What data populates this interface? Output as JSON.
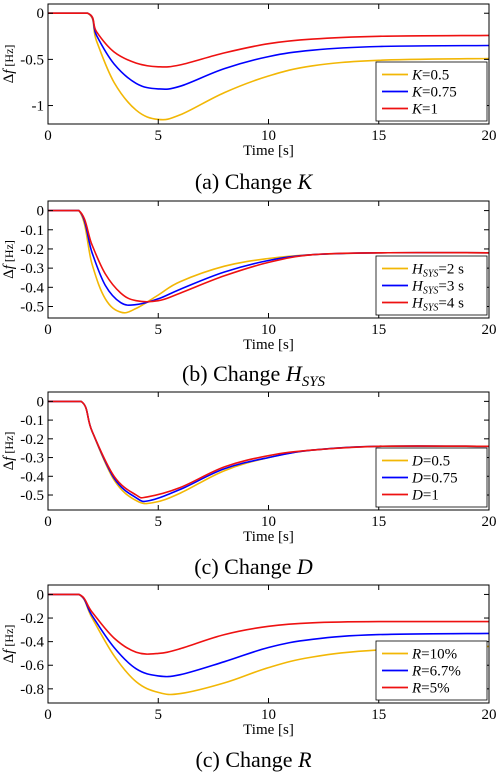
{
  "chart_data": [
    {
      "type": "line",
      "caption": {
        "prefix": "(a) Change ",
        "symbol": "K",
        "sub": ""
      },
      "xlabel": "Time [s]",
      "ylabel": {
        "delta": "Δ",
        "var": "f",
        "unit": " [Hz]"
      },
      "xlim": [
        0,
        20
      ],
      "ylim": [
        -1.2,
        0.1
      ],
      "xticks": [
        0,
        5,
        10,
        15,
        20
      ],
      "xtick_labels": [
        "0",
        "5",
        "10",
        "15",
        "20"
      ],
      "yticks": [
        0,
        -0.5,
        -1
      ],
      "ytick_labels": [
        "0",
        "-0.5",
        "-1"
      ],
      "legend_position": "bottom-right",
      "series": [
        {
          "name": "0.5",
          "symbol": "K",
          "sub": "",
          "color": "#f2b705",
          "x": [
            0,
            1.8,
            2.2,
            3,
            4,
            5,
            6,
            8,
            10,
            12,
            15,
            20
          ],
          "y": [
            0,
            0,
            -0.3,
            -0.75,
            -1.05,
            -1.15,
            -1.1,
            -0.86,
            -0.68,
            -0.57,
            -0.51,
            -0.49
          ]
        },
        {
          "name": "0.75",
          "symbol": "K",
          "sub": "",
          "color": "#0000ff",
          "x": [
            0,
            1.8,
            2.2,
            3,
            4,
            5,
            6,
            8,
            10,
            12,
            15,
            20
          ],
          "y": [
            0,
            0,
            -0.24,
            -0.55,
            -0.76,
            -0.82,
            -0.79,
            -0.6,
            -0.47,
            -0.4,
            -0.36,
            -0.35
          ]
        },
        {
          "name": "1",
          "symbol": "K",
          "sub": "",
          "color": "#ee1111",
          "x": [
            0,
            1.8,
            2.2,
            3,
            4,
            5,
            6,
            8,
            10,
            12,
            15,
            20
          ],
          "y": [
            0,
            0,
            -0.2,
            -0.42,
            -0.54,
            -0.58,
            -0.56,
            -0.43,
            -0.33,
            -0.28,
            -0.25,
            -0.24
          ]
        }
      ]
    },
    {
      "type": "line",
      "caption": {
        "prefix": "(b) Change ",
        "symbol": "H",
        "sub": "SYS"
      },
      "xlabel": "Time [s]",
      "ylabel": {
        "delta": "Δ",
        "var": "f",
        "unit": " [Hz]"
      },
      "xlim": [
        0,
        20
      ],
      "ylim": [
        -0.56,
        0.05
      ],
      "xticks": [
        0,
        5,
        10,
        15,
        20
      ],
      "xtick_labels": [
        "0",
        "5",
        "10",
        "15",
        "20"
      ],
      "yticks": [
        0,
        -0.1,
        -0.2,
        -0.3,
        -0.4,
        -0.5
      ],
      "ytick_labels": [
        "0",
        "-0.1",
        "-0.2",
        "-0.3",
        "-0.4",
        "-0.5"
      ],
      "legend_position": "bottom-right",
      "series": [
        {
          "name": "2 s",
          "symbol": "H",
          "sub": "SYS",
          "color": "#f2b705",
          "x": [
            0,
            1.4,
            2,
            2.6,
            3.3,
            4,
            5,
            6,
            8,
            10,
            12,
            15,
            20
          ],
          "y": [
            0,
            0,
            -0.28,
            -0.46,
            -0.53,
            -0.51,
            -0.44,
            -0.37,
            -0.29,
            -0.25,
            -0.23,
            -0.22,
            -0.22
          ]
        },
        {
          "name": "3 s",
          "symbol": "H",
          "sub": "SYS",
          "color": "#0000ff",
          "x": [
            0,
            1.4,
            2,
            2.6,
            3.3,
            4,
            5,
            6,
            8,
            10,
            12,
            15,
            20
          ],
          "y": [
            0,
            0,
            -0.22,
            -0.39,
            -0.48,
            -0.49,
            -0.46,
            -0.41,
            -0.32,
            -0.26,
            -0.23,
            -0.22,
            -0.22
          ]
        },
        {
          "name": "4 s",
          "symbol": "H",
          "sub": "SYS",
          "color": "#ee1111",
          "x": [
            0,
            1.4,
            2,
            2.6,
            3.3,
            4,
            5,
            6,
            8,
            10,
            12,
            15,
            20
          ],
          "y": [
            0,
            0,
            -0.18,
            -0.33,
            -0.43,
            -0.47,
            -0.47,
            -0.43,
            -0.34,
            -0.27,
            -0.23,
            -0.22,
            -0.22
          ]
        }
      ]
    },
    {
      "type": "line",
      "caption": {
        "prefix": "(c) Change ",
        "symbol": "D",
        "sub": ""
      },
      "xlabel": "Time [s]",
      "ylabel": {
        "delta": "Δ",
        "var": "f",
        "unit": " [Hz]"
      },
      "xlim": [
        0,
        20
      ],
      "ylim": [
        -0.58,
        0.05
      ],
      "xticks": [
        0,
        5,
        10,
        15,
        20
      ],
      "xtick_labels": [
        "0",
        "5",
        "10",
        "15",
        "20"
      ],
      "yticks": [
        0,
        -0.1,
        -0.2,
        -0.3,
        -0.4,
        -0.5
      ],
      "ytick_labels": [
        "0",
        "-0.1",
        "-0.2",
        "-0.3",
        "-0.4",
        "-0.5"
      ],
      "legend_position": "bottom-right",
      "series": [
        {
          "name": "0.5",
          "symbol": "D",
          "sub": "",
          "color": "#f2b705",
          "x": [
            0,
            1.5,
            2,
            3,
            4,
            4.8,
            6,
            8,
            10,
            12,
            15,
            20
          ],
          "y": [
            0,
            0,
            -0.16,
            -0.42,
            -0.53,
            -0.54,
            -0.49,
            -0.37,
            -0.3,
            -0.26,
            -0.24,
            -0.24
          ]
        },
        {
          "name": "0.75",
          "symbol": "D",
          "sub": "",
          "color": "#0000ff",
          "x": [
            0,
            1.5,
            2,
            3,
            4,
            4.6,
            6,
            8,
            10,
            12,
            15,
            20
          ],
          "y": [
            0,
            0,
            -0.16,
            -0.41,
            -0.515,
            -0.53,
            -0.47,
            -0.36,
            -0.3,
            -0.26,
            -0.24,
            -0.24
          ]
        },
        {
          "name": "1",
          "symbol": "D",
          "sub": "",
          "color": "#ee1111",
          "x": [
            0,
            1.5,
            2,
            3,
            4,
            4.5,
            6,
            8,
            10,
            12,
            15,
            20
          ],
          "y": [
            0,
            0,
            -0.16,
            -0.4,
            -0.5,
            -0.51,
            -0.46,
            -0.35,
            -0.29,
            -0.26,
            -0.24,
            -0.24
          ]
        }
      ]
    },
    {
      "type": "line",
      "caption": {
        "prefix": "(c) Change ",
        "symbol": "R",
        "sub": ""
      },
      "xlabel": "Time [s]",
      "ylabel": {
        "delta": "Δ",
        "var": "f",
        "unit": " [Hz]"
      },
      "xlim": [
        0,
        20
      ],
      "ylim": [
        -0.92,
        0.08
      ],
      "xticks": [
        0,
        5,
        10,
        15,
        20
      ],
      "xtick_labels": [
        "0",
        "5",
        "10",
        "15",
        "20"
      ],
      "yticks": [
        0,
        -0.2,
        -0.4,
        -0.6,
        -0.8
      ],
      "ytick_labels": [
        "0",
        "-0.2",
        "-0.4",
        "-0.6",
        "-0.8"
      ],
      "legend_position": "bottom-right",
      "series": [
        {
          "name": "10%",
          "symbol": "R",
          "sub": "",
          "color": "#f2b705",
          "x": [
            0,
            1.4,
            2,
            3,
            4,
            5,
            6,
            8,
            10,
            12,
            15,
            20
          ],
          "y": [
            0,
            0,
            -0.2,
            -0.52,
            -0.74,
            -0.83,
            -0.84,
            -0.75,
            -0.62,
            -0.53,
            -0.47,
            -0.44
          ]
        },
        {
          "name": "6.7%",
          "symbol": "R",
          "sub": "",
          "color": "#0000ff",
          "x": [
            0,
            1.4,
            2,
            3,
            4,
            5,
            6,
            8,
            10,
            12,
            15,
            20
          ],
          "y": [
            0,
            0,
            -0.18,
            -0.45,
            -0.63,
            -0.69,
            -0.68,
            -0.57,
            -0.45,
            -0.38,
            -0.34,
            -0.33
          ]
        },
        {
          "name": "5%",
          "symbol": "R",
          "sub": "",
          "color": "#ee1111",
          "x": [
            0,
            1.4,
            2,
            3,
            4,
            5,
            6,
            8,
            10,
            12,
            15,
            20
          ],
          "y": [
            0,
            0,
            -0.15,
            -0.37,
            -0.49,
            -0.5,
            -0.46,
            -0.34,
            -0.27,
            -0.24,
            -0.23,
            -0.23
          ]
        }
      ]
    }
  ]
}
